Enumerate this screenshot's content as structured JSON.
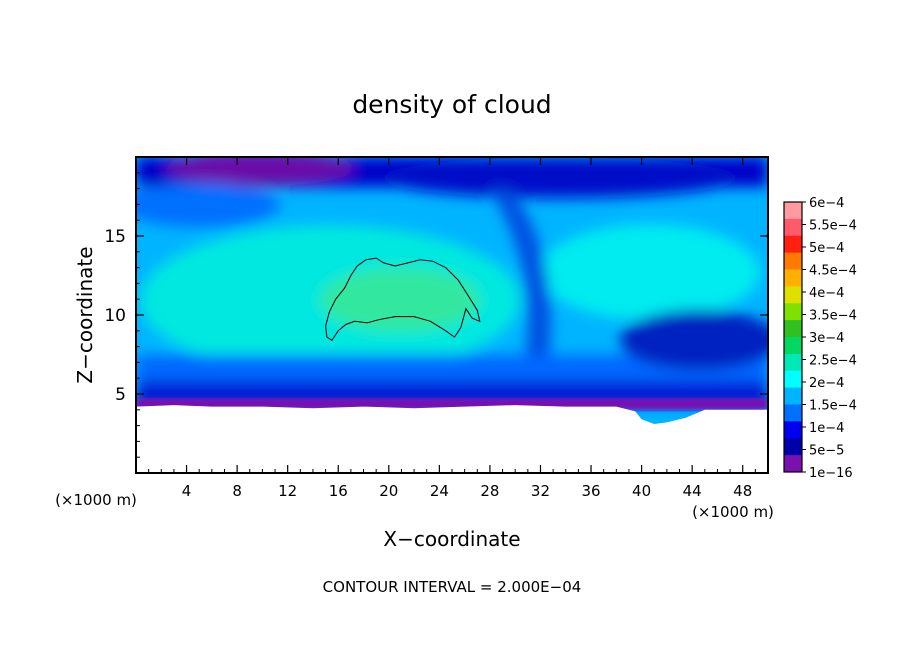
{
  "chart_data": {
    "type": "heatmap",
    "title": "density of cloud",
    "xlabel": "X−coordinate",
    "ylabel": "Z−coordinate",
    "x_unit": "(×1000 m)",
    "y_unit": "(×1000 m)",
    "xlim": [
      0,
      50
    ],
    "ylim": [
      0,
      20
    ],
    "x_ticks": [
      {
        "value": 4,
        "label": "4"
      },
      {
        "value": 8,
        "label": "8"
      },
      {
        "value": 12,
        "label": "12"
      },
      {
        "value": 16,
        "label": "16"
      },
      {
        "value": 20,
        "label": "20"
      },
      {
        "value": 24,
        "label": "24"
      },
      {
        "value": 28,
        "label": "28"
      },
      {
        "value": 32,
        "label": "32"
      },
      {
        "value": 36,
        "label": "36"
      },
      {
        "value": 40,
        "label": "40"
      },
      {
        "value": 44,
        "label": "44"
      },
      {
        "value": 48,
        "label": "48"
      }
    ],
    "y_ticks": [
      {
        "value": 5,
        "label": "5"
      },
      {
        "value": 10,
        "label": "10"
      },
      {
        "value": 15,
        "label": "15"
      }
    ],
    "footer": "CONTOUR INTERVAL = 2.000E−04",
    "colorbar": {
      "labels": [
        "6e−4",
        "5.5e−4",
        "5e−4",
        "4.5e−4",
        "4e−4",
        "3.5e−4",
        "3e−4",
        "2.5e−4",
        "2e−4",
        "1.5e−4",
        "1e−4",
        "5e−5",
        "1e−16"
      ],
      "colors": [
        "#ff9aa0",
        "#ff5a6a",
        "#ff2010",
        "#ff7a00",
        "#ffb000",
        "#e0e000",
        "#80e000",
        "#30c020",
        "#00d860",
        "#00e8b8",
        "#00ffff",
        "#00b4ff",
        "#0070ff",
        "#0000f0",
        "#0000a8",
        "#7a10b0"
      ]
    },
    "terrain_top": [
      [
        0,
        4.2
      ],
      [
        3,
        4.3
      ],
      [
        6,
        4.2
      ],
      [
        10,
        4.2
      ],
      [
        14,
        4.1
      ],
      [
        18,
        4.2
      ],
      [
        22,
        4.1
      ],
      [
        26,
        4.2
      ],
      [
        30,
        4.3
      ],
      [
        34,
        4.2
      ],
      [
        38,
        4.2
      ],
      [
        39.5,
        3.9
      ],
      [
        40,
        3.4
      ],
      [
        41,
        3.1
      ],
      [
        42,
        3.2
      ],
      [
        43.5,
        3.5
      ],
      [
        45,
        4.0
      ],
      [
        46,
        4.0
      ],
      [
        50,
        4.0
      ]
    ],
    "contour_2e-4": [
      [
        15.0,
        9.3
      ],
      [
        15.3,
        10.2
      ],
      [
        15.8,
        11.0
      ],
      [
        16.5,
        11.7
      ],
      [
        17.0,
        12.5
      ],
      [
        17.5,
        13.1
      ],
      [
        18.2,
        13.5
      ],
      [
        19.0,
        13.6
      ],
      [
        19.6,
        13.3
      ],
      [
        20.5,
        13.1
      ],
      [
        21.5,
        13.3
      ],
      [
        22.5,
        13.5
      ],
      [
        23.5,
        13.4
      ],
      [
        24.5,
        13.0
      ],
      [
        25.5,
        12.2
      ],
      [
        26.3,
        11.2
      ],
      [
        27.0,
        10.3
      ],
      [
        27.2,
        9.6
      ],
      [
        26.6,
        9.8
      ],
      [
        26.1,
        10.4
      ],
      [
        25.7,
        9.2
      ],
      [
        25.2,
        8.6
      ],
      [
        24.5,
        9.0
      ],
      [
        23.3,
        9.6
      ],
      [
        22.0,
        9.9
      ],
      [
        20.5,
        9.9
      ],
      [
        19.2,
        9.7
      ],
      [
        18.3,
        9.5
      ],
      [
        17.3,
        9.6
      ],
      [
        16.6,
        9.4
      ],
      [
        16.0,
        9.0
      ],
      [
        15.5,
        8.4
      ],
      [
        15.1,
        8.6
      ]
    ]
  }
}
